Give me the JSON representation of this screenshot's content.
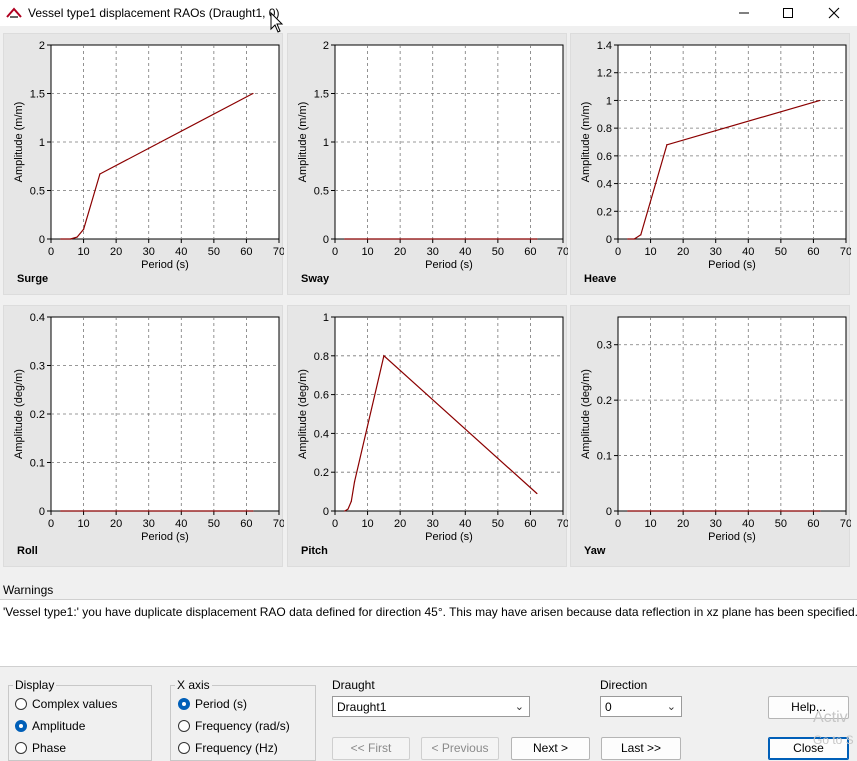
{
  "window": {
    "title": "Vessel type1 displacement RAOs (Draught1, 0)",
    "icons": [
      "app-icon",
      "minimize-icon",
      "maximize-icon",
      "close-icon"
    ]
  },
  "charts": [
    {
      "label": "Surge",
      "ylabel": "Amplitude (m/m)",
      "xlabel": "Period (s)",
      "xmax": 70,
      "ymax": 2,
      "yticks": [
        "0",
        "0.5",
        "1",
        "1.5",
        "2"
      ]
    },
    {
      "label": "Sway",
      "ylabel": "Amplitude (m/m)",
      "xlabel": "Period (s)",
      "xmax": 70,
      "ymax": 2,
      "yticks": [
        "0",
        "0.5",
        "1",
        "1.5",
        "2"
      ]
    },
    {
      "label": "Heave",
      "ylabel": "Amplitude (m/m)",
      "xlabel": "Period (s)",
      "xmax": 70,
      "ymax": 1.4,
      "yticks": [
        "0",
        "0.2",
        "0.4",
        "0.6",
        "0.8",
        "1",
        "1.2",
        "1.4"
      ]
    },
    {
      "label": "Roll",
      "ylabel": "Amplitude (deg/m)",
      "xlabel": "Period (s)",
      "xmax": 70,
      "ymax": 0.4,
      "yticks": [
        "0",
        "0.1",
        "0.2",
        "0.3",
        "0.4"
      ]
    },
    {
      "label": "Pitch",
      "ylabel": "Amplitude (deg/m)",
      "xlabel": "Period (s)",
      "xmax": 70,
      "ymax": 1,
      "yticks": [
        "0",
        "0.2",
        "0.4",
        "0.6",
        "0.8",
        "1"
      ]
    },
    {
      "label": "Yaw",
      "ylabel": "Amplitude (deg/m)",
      "xlabel": "Period (s)",
      "xmax": 70,
      "ymax": 0.35,
      "yticks": [
        "0",
        "0.1",
        "0.2",
        "0.3"
      ]
    }
  ],
  "chart_data": [
    {
      "type": "line",
      "x": [
        3,
        6,
        8,
        10,
        15,
        62
      ],
      "y": [
        0,
        0,
        0.02,
        0.1,
        0.67,
        1.5
      ],
      "xlabel": "Period (s)",
      "ylabel": "Amplitude (m/m)",
      "xlim": [
        0,
        70
      ],
      "ylim": [
        0,
        2
      ],
      "xticks": [
        "0",
        "10",
        "20",
        "30",
        "40",
        "50",
        "60",
        "70"
      ],
      "grid": true,
      "color": "#8b0000"
    },
    {
      "type": "line",
      "x": [
        3,
        62
      ],
      "y": [
        0,
        0
      ],
      "xlabel": "Period (s)",
      "ylabel": "Amplitude (m/m)",
      "xlim": [
        0,
        70
      ],
      "ylim": [
        0,
        2
      ],
      "xticks": [
        "0",
        "10",
        "20",
        "30",
        "40",
        "50",
        "60",
        "70"
      ],
      "grid": true,
      "color": "#8b0000"
    },
    {
      "type": "line",
      "x": [
        3,
        5,
        7,
        15,
        62
      ],
      "y": [
        0,
        0,
        0.03,
        0.68,
        1.0
      ],
      "xlabel": "Period (s)",
      "ylabel": "Amplitude (m/m)",
      "xlim": [
        0,
        70
      ],
      "ylim": [
        0,
        1.4
      ],
      "xticks": [
        "0",
        "10",
        "20",
        "30",
        "40",
        "50",
        "60",
        "70"
      ],
      "grid": true,
      "color": "#8b0000"
    },
    {
      "type": "line",
      "x": [
        3,
        62
      ],
      "y": [
        0,
        0
      ],
      "xlabel": "Period (s)",
      "ylabel": "Amplitude (deg/m)",
      "xlim": [
        0,
        70
      ],
      "ylim": [
        0,
        0.4
      ],
      "xticks": [
        "0",
        "10",
        "20",
        "30",
        "40",
        "50",
        "60",
        "70"
      ],
      "grid": true,
      "color": "#8b0000"
    },
    {
      "type": "line",
      "x": [
        3,
        4,
        5,
        6,
        15,
        62
      ],
      "y": [
        0,
        0.01,
        0.05,
        0.15,
        0.8,
        0.09
      ],
      "xlabel": "Period (s)",
      "ylabel": "Amplitude (deg/m)",
      "xlim": [
        0,
        70
      ],
      "ylim": [
        0,
        1
      ],
      "xticks": [
        "0",
        "10",
        "20",
        "30",
        "40",
        "50",
        "60",
        "70"
      ],
      "grid": true,
      "color": "#8b0000"
    },
    {
      "type": "line",
      "x": [
        3,
        62
      ],
      "y": [
        0,
        0
      ],
      "xlabel": "Period (s)",
      "ylabel": "Amplitude (deg/m)",
      "xlim": [
        0,
        70
      ],
      "ylim": [
        0,
        0.35
      ],
      "xticks": [
        "0",
        "10",
        "20",
        "30",
        "40",
        "50",
        "60",
        "70"
      ],
      "grid": true,
      "color": "#8b0000"
    }
  ],
  "warnings": {
    "title": "Warnings",
    "text": "'Vessel type1:' you have duplicate displacement RAO data defined for direction 45°.  This may have arisen because data reflection in xz plane has been specified."
  },
  "display": {
    "title": "Display",
    "options": [
      "Complex values",
      "Amplitude",
      "Phase"
    ],
    "selected": "Amplitude"
  },
  "xaxis": {
    "title": "X axis",
    "options": [
      "Period (s)",
      "Frequency (rad/s)",
      "Frequency (Hz)"
    ],
    "selected": "Period (s)"
  },
  "draught": {
    "label": "Draught",
    "value": "Draught1"
  },
  "direction": {
    "label": "Direction",
    "value": "0"
  },
  "buttons": {
    "first": "<< First",
    "previous": "< Previous",
    "next": "Next  >",
    "last": "Last  >>",
    "help": "Help...",
    "close": "Close"
  },
  "overlay": {
    "line1": "Activ",
    "line2": "Go to S"
  },
  "colors": {
    "line": "#8b0000",
    "accent": "#005fb8"
  }
}
